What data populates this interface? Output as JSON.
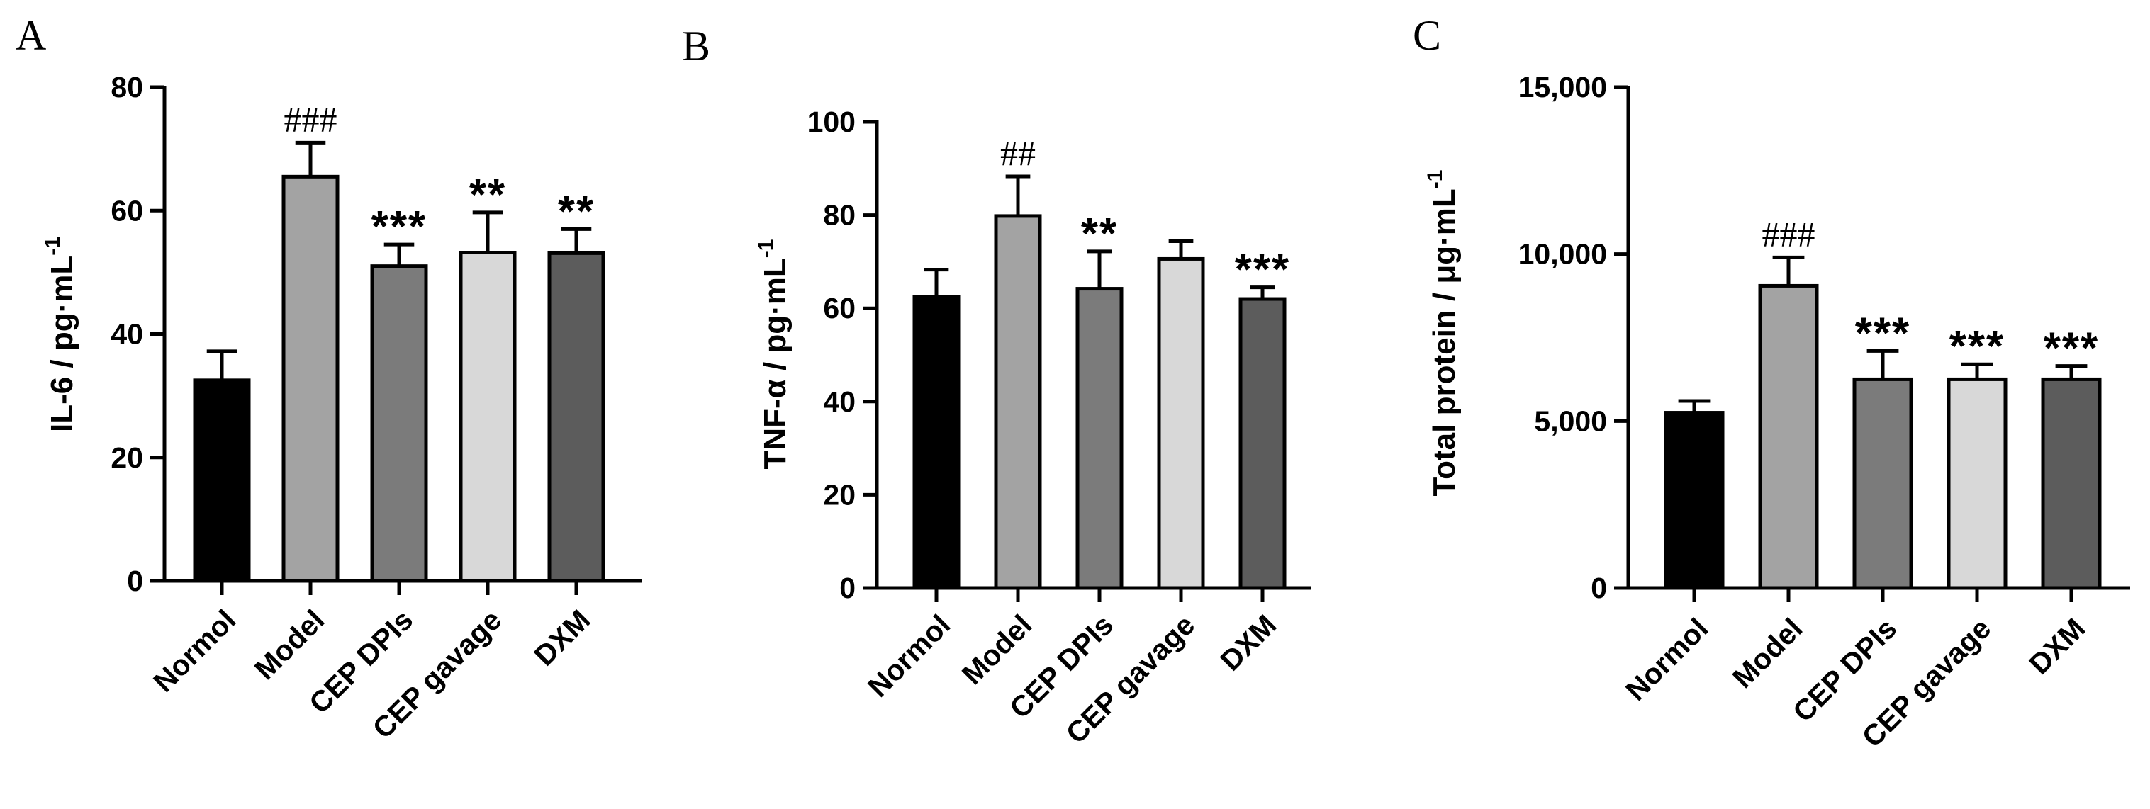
{
  "chart_data": [
    {
      "panel": "A",
      "type": "bar",
      "categories": [
        "Normol",
        "Model",
        "CEP DPIs",
        "CEP gavage",
        "DXM"
      ],
      "values": [
        32.5,
        65.5,
        51.0,
        53.2,
        53.1
      ],
      "errors": [
        4.7,
        5.5,
        3.5,
        6.5,
        3.9
      ],
      "significance": [
        "",
        "###",
        "***",
        "**",
        "**"
      ],
      "colors": [
        "#000000",
        "#a3a3a3",
        "#7b7b7b",
        "#d8d8d8",
        "#5c5c5c"
      ],
      "ylabel": "IL-6 / pg·mL",
      "ylabel_sup": "-1",
      "ylim": [
        0,
        80
      ],
      "yticks": [
        0,
        20,
        40,
        60,
        80
      ],
      "ytick_labels": [
        "0",
        "20",
        "40",
        "60",
        "80"
      ],
      "grid": false
    },
    {
      "panel": "B",
      "type": "bar",
      "categories": [
        "Normol",
        "Model",
        "CEP DPIs",
        "CEP gavage",
        "DXM"
      ],
      "values": [
        62.5,
        79.8,
        64.2,
        70.6,
        62.0
      ],
      "errors": [
        5.8,
        8.5,
        8.0,
        3.8,
        2.5
      ],
      "significance": [
        "",
        "##",
        "**",
        "",
        "***"
      ],
      "colors": [
        "#000000",
        "#a3a3a3",
        "#7b7b7b",
        "#d8d8d8",
        "#5c5c5c"
      ],
      "ylabel": "TNF-α / pg·mL",
      "ylabel_sup": "-1",
      "ylim": [
        0,
        100
      ],
      "yticks": [
        0,
        20,
        40,
        60,
        80,
        100
      ],
      "ytick_labels": [
        "0",
        "20",
        "40",
        "60",
        "80",
        "100"
      ],
      "grid": false
    },
    {
      "panel": "C",
      "type": "bar",
      "categories": [
        "Normol",
        "Model",
        "CEP DPIs",
        "CEP gavage",
        "DXM"
      ],
      "values": [
        5250,
        9050,
        6250,
        6250,
        6250
      ],
      "errors": [
        350,
        850,
        850,
        450,
        400
      ],
      "significance": [
        "",
        "###",
        "***",
        "***",
        "***"
      ],
      "colors": [
        "#000000",
        "#a3a3a3",
        "#7b7b7b",
        "#d8d8d8",
        "#5c5c5c"
      ],
      "ylabel": "Total protein / μg·mL",
      "ylabel_sup": "-1",
      "ylim": [
        0,
        15000
      ],
      "yticks": [
        0,
        5000,
        10000,
        15000
      ],
      "ytick_labels": [
        "0",
        "5,000",
        "10,000",
        "15,000"
      ],
      "grid": false
    }
  ]
}
